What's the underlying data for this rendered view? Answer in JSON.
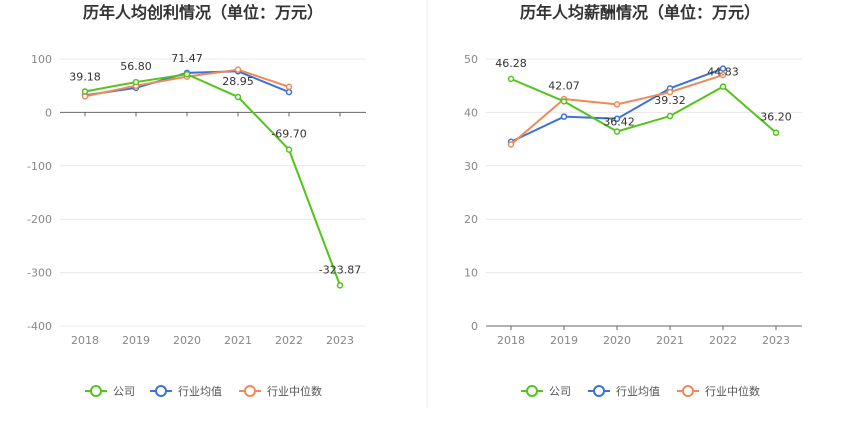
{
  "legend": [
    "公司",
    "行业均值",
    "行业中位数"
  ],
  "colors": {
    "company": "#52c41a",
    "mean": "#3a72d8",
    "median": "#ee8a5a"
  },
  "chart_data": [
    {
      "type": "line",
      "title": "历年人均创利情况（单位：万元）",
      "categories": [
        "2018",
        "2019",
        "2020",
        "2021",
        "2022",
        "2023"
      ],
      "ylim": [
        -400,
        100
      ],
      "yticks": [
        100,
        0,
        -100,
        -200,
        -300,
        -400
      ],
      "grid": true,
      "legend_position": "bottom",
      "series": [
        {
          "name": "公司",
          "values": [
            39.18,
            56.8,
            71.47,
            28.95,
            -69.7,
            -323.87
          ],
          "labels": [
            "39.18",
            "56.80",
            "71.47",
            "28.95",
            "-69.70",
            "-323.87"
          ]
        },
        {
          "name": "行业均值",
          "values": [
            32,
            46,
            74,
            77,
            38,
            null
          ]
        },
        {
          "name": "行业中位数",
          "values": [
            30,
            50,
            67,
            80,
            48,
            null
          ]
        }
      ]
    },
    {
      "type": "line",
      "title": "历年人均薪酬情况（单位：万元）",
      "categories": [
        "2018",
        "2019",
        "2020",
        "2021",
        "2022",
        "2023"
      ],
      "ylim": [
        0,
        50
      ],
      "yticks": [
        50,
        40,
        30,
        20,
        10,
        0
      ],
      "grid": true,
      "legend_position": "bottom",
      "series": [
        {
          "name": "公司",
          "values": [
            46.28,
            42.07,
            36.42,
            39.32,
            44.83,
            36.2
          ],
          "labels": [
            "46.28",
            "42.07",
            "36.42",
            "39.32",
            "44.83",
            "36.20"
          ]
        },
        {
          "name": "行业均值",
          "values": [
            34.5,
            39.2,
            38.8,
            44.5,
            48.2,
            null
          ]
        },
        {
          "name": "行业中位数",
          "values": [
            34.0,
            42.5,
            41.5,
            43.8,
            47.0,
            null
          ]
        }
      ]
    }
  ]
}
